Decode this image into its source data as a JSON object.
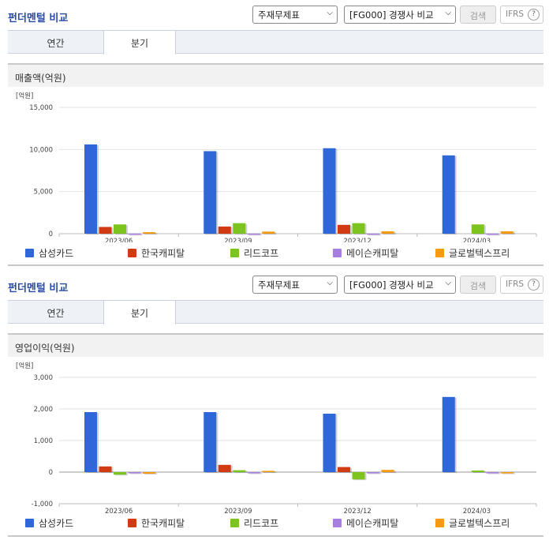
{
  "panels": [
    {
      "title": "펀더멘털 비교",
      "select1": "주재무제표",
      "select2": "[FG000] 경쟁사 비교",
      "search_label": "검색",
      "ifrs_label": "IFRS",
      "help_label": "?",
      "tabs": [
        {
          "label": "연간"
        },
        {
          "label": "분기"
        }
      ],
      "active_tab": 1,
      "subtitle": "매출액(억원)"
    },
    {
      "title": "펀더멘털 비교",
      "select1": "주재무제표",
      "select2": "[FG000] 경쟁사 비교",
      "search_label": "검색",
      "ifrs_label": "IFRS",
      "help_label": "?",
      "tabs": [
        {
          "label": "연간"
        },
        {
          "label": "분기"
        }
      ],
      "active_tab": 1,
      "subtitle": "영업이익(억원)"
    }
  ],
  "colors": {
    "삼성카드": "#2f66d8",
    "한국캐피탈": "#d23a13",
    "리드코프": "#7dc41e",
    "메이슨캐피탈": "#a87ee0",
    "글로벌텍스프리": "#f59a12"
  },
  "chart_data": [
    {
      "type": "bar",
      "unit_label": "[억원]",
      "categories": [
        "2023/06",
        "2023/09",
        "2023/12",
        "2024/03"
      ],
      "ylim": [
        0,
        15000
      ],
      "yticks": [
        "15,000",
        "10,000",
        "5,000",
        "0"
      ],
      "ytick_values": [
        15000,
        10000,
        5000,
        0
      ],
      "grid": true,
      "legend": "bottom",
      "series": [
        {
          "name": "삼성카드",
          "values": [
            10600,
            9800,
            10150,
            9300
          ]
        },
        {
          "name": "한국캐피탈",
          "values": [
            800,
            850,
            1050,
            null
          ]
        },
        {
          "name": "리드코프",
          "values": [
            1100,
            1250,
            1250,
            1100
          ]
        },
        {
          "name": "메이슨캐피탈",
          "values": [
            20,
            20,
            20,
            20
          ]
        },
        {
          "name": "글로벌텍스프리",
          "values": [
            180,
            250,
            280,
            280
          ]
        }
      ]
    },
    {
      "type": "bar",
      "unit_label": "[억원]",
      "categories": [
        "2023/06",
        "2023/09",
        "2023/12",
        "2024/03"
      ],
      "ylim": [
        -1000,
        3000
      ],
      "yticks": [
        "3,000",
        "2,000",
        "1,000",
        "0",
        "-1,000"
      ],
      "ytick_values": [
        3000,
        2000,
        1000,
        0,
        -1000
      ],
      "grid": true,
      "legend": "bottom",
      "series": [
        {
          "name": "삼성카드",
          "values": [
            1900,
            1900,
            1850,
            2380
          ]
        },
        {
          "name": "한국캐피탈",
          "values": [
            180,
            230,
            160,
            null
          ]
        },
        {
          "name": "리드코프",
          "values": [
            -80,
            60,
            -230,
            50
          ]
        },
        {
          "name": "메이슨캐피탈",
          "values": [
            -10,
            -10,
            -10,
            -30
          ]
        },
        {
          "name": "글로벌텍스프리",
          "values": [
            -50,
            40,
            70,
            -40
          ]
        }
      ]
    }
  ]
}
